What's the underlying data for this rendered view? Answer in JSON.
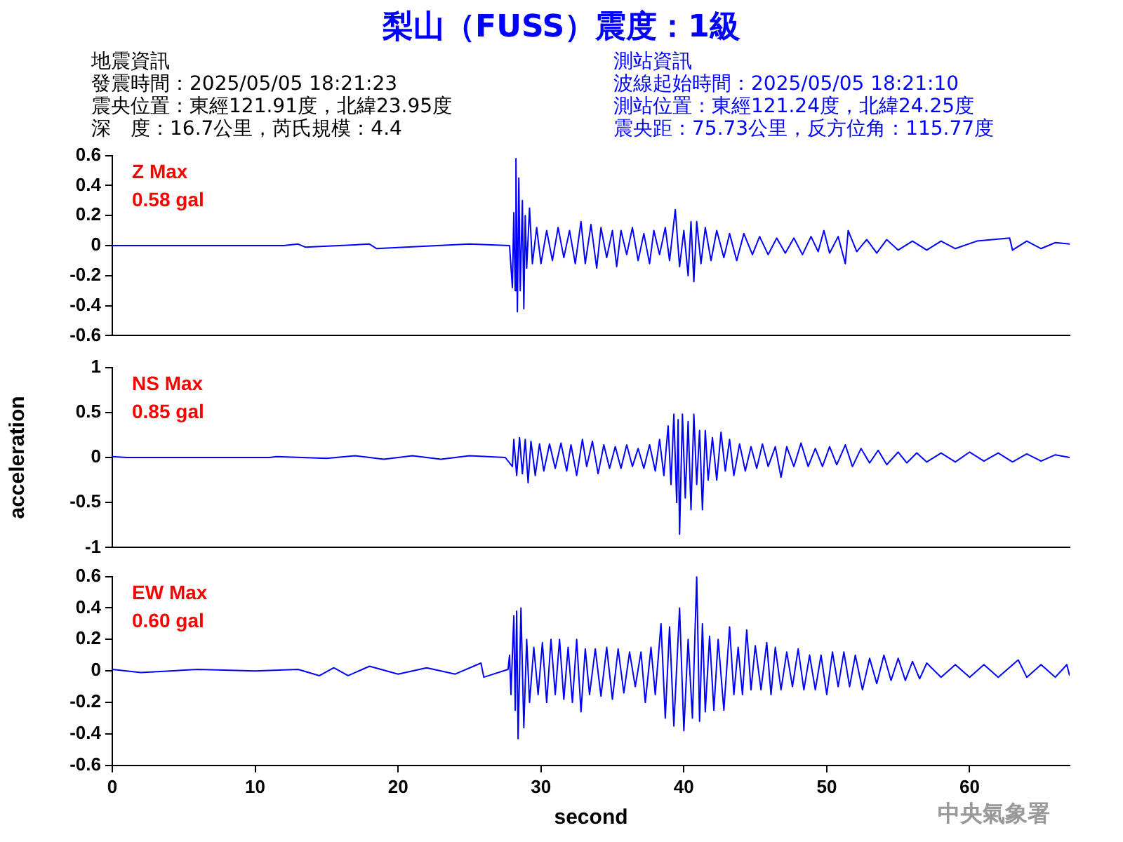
{
  "chart_data": [
    {
      "type": "line",
      "title": "梨山（FUSS）震度：1級",
      "annotations": [
        "Z Max",
        "0.58 gal",
        "地震資訊",
        "發震時間：2025/05/05 18:21:23",
        "震央位置：東經121.91度，北緯23.95度",
        "深　度：16.7公里，芮氏規模：4.4",
        "測站資訊",
        "波線起始時間：2025/05/05 18:21:10",
        "測站位置：東經121.24度，北緯24.25度",
        "震央距：75.73公里，反方位角：115.77度"
      ],
      "x": [
        0,
        12,
        13,
        13.5,
        18,
        18.5,
        25,
        27.8,
        28.0,
        28.1,
        28.2,
        28.25,
        28.35,
        28.45,
        28.55,
        28.7,
        28.8,
        28.9,
        29.0,
        29.2,
        29.4,
        29.7,
        30.0,
        30.4,
        30.8,
        31.2,
        31.6,
        32,
        32.4,
        32.8,
        33.1,
        33.5,
        33.9,
        34.2,
        34.6,
        35.0,
        35.3,
        35.6,
        36,
        36.4,
        36.8,
        37.2,
        37.6,
        37.9,
        38.3,
        38.7,
        39,
        39.4,
        39.7,
        40.0,
        40.3,
        40.5,
        40.7,
        40.9,
        41.2,
        41.5,
        41.9,
        42.3,
        42.8,
        43.2,
        43.7,
        44.2,
        44.8,
        45.3,
        45.9,
        46.5,
        47.1,
        47.7,
        48.3,
        48.9,
        49.4,
        49.8,
        50.2,
        50.8,
        51.3,
        51.5,
        52.1,
        52.8,
        53.5,
        54.2,
        55,
        56,
        57,
        58,
        59,
        60.5,
        62.8,
        63,
        64,
        65,
        66,
        67
      ],
      "series": [
        {
          "color": "#0000ff",
          "values": [
            0,
            0,
            0.01,
            -0.01,
            0.01,
            -0.02,
            0.01,
            0,
            -0.28,
            0.22,
            -0.3,
            0.58,
            -0.44,
            0.45,
            -0.3,
            0.3,
            -0.42,
            0.2,
            -0.15,
            0.25,
            -0.12,
            0.12,
            -0.12,
            0.1,
            -0.1,
            0.12,
            -0.08,
            0.1,
            -0.12,
            0.16,
            -0.12,
            0.14,
            -0.15,
            0.12,
            -0.08,
            0.1,
            -0.14,
            0.1,
            -0.06,
            0.12,
            -0.1,
            0.08,
            -0.12,
            0.1,
            -0.06,
            0.12,
            -0.1,
            0.24,
            -0.14,
            0.1,
            -0.2,
            0.16,
            -0.24,
            0.16,
            -0.12,
            0.12,
            -0.1,
            0.1,
            -0.08,
            0.08,
            -0.1,
            0.08,
            -0.06,
            0.06,
            -0.06,
            0.05,
            -0.05,
            0.05,
            -0.06,
            0.06,
            -0.04,
            0.1,
            -0.05,
            0.06,
            -0.12,
            0.1,
            -0.04,
            0.04,
            -0.05,
            0.04,
            -0.03,
            0.03,
            -0.03,
            0.03,
            -0.02,
            0.03,
            0.05,
            -0.03,
            0.03,
            -0.02,
            0.02,
            0.01
          ]
        }
      ],
      "xlim": [
        0,
        67
      ],
      "xticks": [
        0,
        10,
        20,
        30,
        40,
        50,
        60
      ],
      "ylim": [
        -0.6,
        0.6
      ],
      "yticks": [
        -0.6,
        -0.4,
        -0.2,
        0,
        0.2,
        0.4,
        0.6
      ],
      "tick_labels": "y"
    },
    {
      "type": "line",
      "ylabel": "acceleration",
      "annotations": [
        "NS Max",
        "0.85 gal"
      ],
      "x": [
        0,
        1,
        11,
        11.5,
        15,
        17,
        19,
        21,
        23,
        25,
        27.5,
        28.0,
        28.1,
        28.3,
        28.5,
        28.7,
        28.9,
        29.1,
        29.3,
        29.6,
        29.9,
        30.2,
        30.6,
        31,
        31.4,
        31.8,
        32.1,
        32.5,
        32.9,
        33.2,
        33.6,
        34,
        34.4,
        34.8,
        35.2,
        35.6,
        36,
        36.4,
        36.8,
        37.2,
        37.6,
        38,
        38.3,
        38.6,
        38.9,
        39.1,
        39.3,
        39.5,
        39.6,
        39.7,
        39.9,
        40.1,
        40.3,
        40.5,
        40.7,
        40.9,
        41.1,
        41.3,
        41.5,
        41.7,
        42,
        42.3,
        42.6,
        42.9,
        43.2,
        43.5,
        43.9,
        44.3,
        44.7,
        45.1,
        45.5,
        45.9,
        46.4,
        46.8,
        47.2,
        47.7,
        48.2,
        48.7,
        49.2,
        49.7,
        50.2,
        50.7,
        51.3,
        51.8,
        52.4,
        53,
        53.6,
        54.2,
        55,
        55.6,
        56.3,
        57,
        58,
        59,
        60,
        61,
        62,
        63,
        64,
        65,
        66,
        67
      ],
      "series": [
        {
          "color": "#0000ff",
          "values": [
            0.01,
            0,
            0,
            0.01,
            -0.01,
            0.02,
            -0.02,
            0.02,
            -0.02,
            0.02,
            0,
            -0.1,
            0.2,
            -0.2,
            0.22,
            -0.18,
            0.2,
            -0.28,
            0.18,
            -0.2,
            0.15,
            -0.15,
            0.15,
            -0.12,
            0.16,
            -0.15,
            0.14,
            -0.2,
            0.2,
            -0.1,
            0.18,
            -0.18,
            0.14,
            -0.12,
            0.12,
            -0.12,
            0.14,
            -0.1,
            0.1,
            -0.12,
            0.14,
            -0.15,
            0.2,
            -0.2,
            0.35,
            -0.3,
            0.48,
            -0.5,
            0.42,
            -0.85,
            0.48,
            -0.45,
            0.4,
            -0.58,
            0.48,
            -0.3,
            0.3,
            -0.58,
            0.3,
            -0.25,
            0.22,
            -0.25,
            0.28,
            -0.15,
            0.2,
            -0.2,
            0.15,
            -0.15,
            0.12,
            -0.12,
            0.15,
            -0.1,
            0.12,
            -0.22,
            0.12,
            -0.1,
            0.16,
            -0.1,
            0.1,
            -0.1,
            0.12,
            -0.08,
            0.14,
            -0.1,
            0.1,
            -0.06,
            0.08,
            -0.08,
            0.06,
            -0.06,
            0.05,
            -0.05,
            0.05,
            -0.05,
            0.06,
            -0.04,
            0.05,
            -0.05,
            0.04,
            -0.04,
            0.03,
            0
          ]
        }
      ],
      "xlim": [
        0,
        67
      ],
      "xticks": [
        0,
        10,
        20,
        30,
        40,
        50,
        60
      ],
      "ylim": [
        -1,
        1
      ],
      "yticks": [
        -1,
        -0.5,
        0,
        0.5,
        1
      ],
      "tick_labels": "y"
    },
    {
      "type": "line",
      "xlabel": "second",
      "annotations": [
        "EW Max",
        "0.60 gal",
        "中央氣象署"
      ],
      "x": [
        0,
        2,
        6,
        10,
        13,
        14.5,
        15.5,
        16.5,
        18,
        20,
        22,
        24,
        25.8,
        26,
        27.7,
        27.8,
        27.9,
        28.1,
        28.2,
        28.3,
        28.4,
        28.6,
        28.8,
        29.0,
        29.2,
        29.5,
        29.8,
        30.1,
        30.4,
        30.7,
        31,
        31.3,
        31.6,
        31.9,
        32.2,
        32.5,
        32.8,
        33.1,
        33.4,
        33.8,
        34.2,
        34.6,
        35,
        35.4,
        35.8,
        36.2,
        36.6,
        37,
        37.3,
        37.7,
        38,
        38.4,
        38.7,
        39,
        39.3,
        39.7,
        40,
        40.3,
        40.6,
        40.9,
        41.1,
        41.3,
        41.5,
        41.8,
        42.1,
        42.4,
        42.8,
        43.2,
        43.5,
        43.8,
        44.1,
        44.4,
        44.7,
        45,
        45.4,
        45.8,
        46.1,
        46.4,
        46.8,
        47.2,
        47.6,
        48,
        48.4,
        48.8,
        49.2,
        49.6,
        50,
        50.4,
        50.8,
        51.2,
        51.6,
        52,
        52.5,
        53,
        53.5,
        54,
        54.5,
        55,
        55.5,
        56,
        56.5,
        57,
        58,
        59,
        60,
        61,
        62,
        63.4,
        64,
        65,
        66,
        66.8,
        67
      ],
      "series": [
        {
          "color": "#0000ff",
          "values": [
            0.01,
            -0.01,
            0.01,
            0,
            0.01,
            -0.03,
            0.02,
            -0.03,
            0.03,
            -0.02,
            0.02,
            -0.02,
            0.05,
            -0.04,
            0.01,
            0.1,
            -0.15,
            0.35,
            -0.25,
            0.38,
            -0.43,
            0.4,
            -0.36,
            0.2,
            -0.2,
            0.15,
            -0.15,
            0.18,
            -0.2,
            0.2,
            -0.15,
            0.2,
            -0.18,
            0.15,
            -0.2,
            0.2,
            -0.26,
            0.14,
            -0.15,
            0.14,
            -0.16,
            0.15,
            -0.18,
            0.14,
            -0.14,
            0.12,
            -0.1,
            0.12,
            -0.2,
            0.15,
            -0.15,
            0.3,
            -0.3,
            0.28,
            -0.35,
            0.4,
            -0.38,
            0.2,
            -0.3,
            0.6,
            -0.32,
            0.3,
            -0.26,
            0.22,
            -0.25,
            0.2,
            -0.25,
            0.28,
            -0.15,
            0.15,
            -0.15,
            0.26,
            -0.12,
            0.16,
            -0.12,
            0.18,
            -0.15,
            0.15,
            -0.12,
            0.12,
            -0.1,
            0.14,
            -0.12,
            0.1,
            -0.12,
            0.1,
            -0.15,
            0.12,
            -0.1,
            0.12,
            -0.1,
            0.1,
            -0.12,
            0.08,
            -0.08,
            0.1,
            -0.06,
            0.08,
            -0.06,
            0.06,
            -0.05,
            0.05,
            -0.04,
            0.04,
            -0.04,
            0.04,
            -0.04,
            0.07,
            -0.04,
            0.04,
            -0.04,
            0.04,
            -0.03
          ]
        }
      ],
      "xlim": [
        0,
        67
      ],
      "xticks": [
        0,
        10,
        20,
        30,
        40,
        50,
        60
      ],
      "ylim": [
        -0.6,
        0.6
      ],
      "yticks": [
        -0.6,
        -0.4,
        -0.2,
        0,
        0.2,
        0.4,
        0.6
      ]
    }
  ]
}
